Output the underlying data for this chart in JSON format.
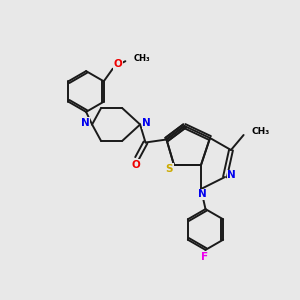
{
  "bg_color": "#e8e8e8",
  "bond_color": "#1a1a1a",
  "atom_colors": {
    "N": "#0000ee",
    "O": "#ee0000",
    "S": "#ccaa00",
    "F": "#ee00ee"
  },
  "lw": 1.4,
  "fs": 7.5
}
